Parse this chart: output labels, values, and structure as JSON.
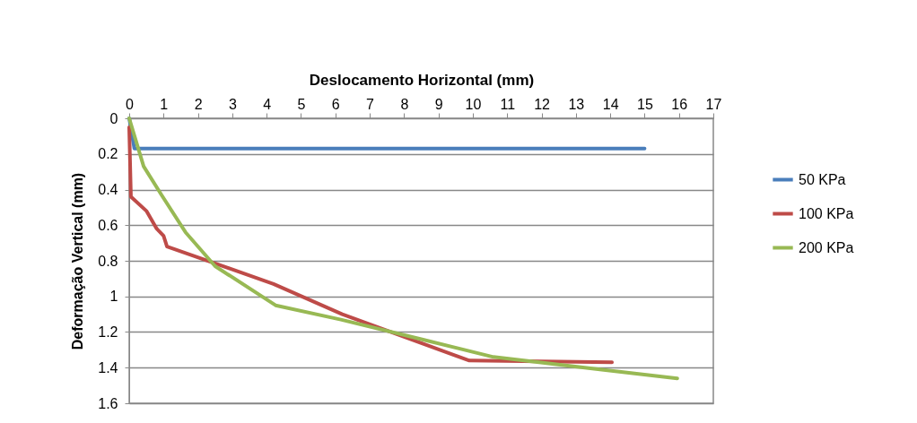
{
  "chart_data": {
    "type": "line",
    "xlabel": "Deslocamento Horizontal (mm)",
    "ylabel": "Deformação Vertical (mm)",
    "xlim": [
      0,
      17
    ],
    "xticks": [
      0,
      1,
      2,
      3,
      4,
      5,
      6,
      7,
      8,
      9,
      10,
      11,
      12,
      13,
      14,
      15,
      16,
      17
    ],
    "ylim": [
      1.6,
      0
    ],
    "yticks": [
      0,
      0.2,
      0.4,
      0.6,
      0.8,
      1,
      1.2,
      1.4,
      1.6
    ],
    "grid": "y",
    "legend": "right",
    "series": [
      {
        "name": "50 KPa",
        "color": "#4a7ebb",
        "x": [
          0,
          0.15,
          15
        ],
        "values": [
          0,
          0.17,
          0.17
        ]
      },
      {
        "name": "100 KPa",
        "color": "#be4b48",
        "x": [
          0,
          0.05,
          0.5,
          0.8,
          1.0,
          1.1,
          4.2,
          6.2,
          9.9,
          14.05
        ],
        "values": [
          0.05,
          0.44,
          0.52,
          0.62,
          0.66,
          0.72,
          0.93,
          1.1,
          1.36,
          1.37
        ]
      },
      {
        "name": "200 KPa",
        "color": "#98b954",
        "x": [
          0,
          0.42,
          0.94,
          1.64,
          2.5,
          4.26,
          6.16,
          8.5,
          10.6,
          13.7,
          15.95
        ],
        "values": [
          0,
          0.27,
          0.43,
          0.64,
          0.83,
          1.05,
          1.13,
          1.24,
          1.34,
          1.41,
          1.46
        ]
      }
    ]
  }
}
